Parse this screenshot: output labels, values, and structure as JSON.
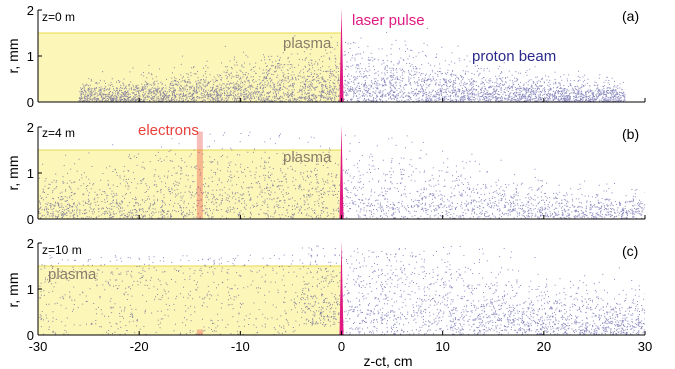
{
  "chart_data": {
    "type": "scatter",
    "x_axis": {
      "label": "z-ct, cm",
      "ticks": [
        "-30",
        "-20",
        "-10",
        "0",
        "10",
        "20",
        "30"
      ],
      "range": [
        -30,
        30
      ]
    },
    "y_axis": {
      "label": "r, mm",
      "ticks": [
        "0",
        "1",
        "2"
      ],
      "range": [
        0,
        2
      ]
    },
    "panels": [
      {
        "id": "a",
        "panel_label": "(a)",
        "z_label": "z=0 m",
        "plasma_label": "plasma",
        "plasma_radius_mm": 1.5,
        "plasma_range_cm": [
          -30,
          0
        ]
      },
      {
        "id": "b",
        "panel_label": "(b)",
        "z_label": "z=4 m",
        "plasma_label": "plasma",
        "plasma_radius_mm": 1.5,
        "plasma_range_cm": [
          -30,
          0
        ]
      },
      {
        "id": "c",
        "panel_label": "(c)",
        "z_label": "z=10 m",
        "plasma_label": "plasma",
        "plasma_radius_mm": 1.5,
        "plasma_range_cm": [
          -30,
          0
        ]
      }
    ],
    "annotations": {
      "laser": "laser pulse",
      "proton": "proton beam",
      "electrons": "electrons"
    },
    "colors": {
      "plasma_fill": "#fcf6b8",
      "plasma_edge": "#e8d94a",
      "proton": "#2b2a8a",
      "laser": "#e01a82",
      "electrons": "#e8413c",
      "label_gray": "#8a7d6a"
    }
  }
}
